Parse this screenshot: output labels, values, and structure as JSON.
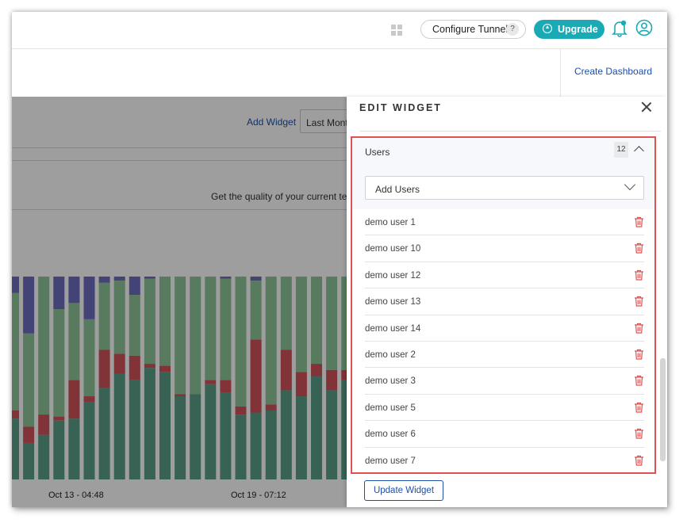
{
  "header": {
    "configure_tunnel_label": "Configure Tunnel",
    "configure_tunnel_help": "?",
    "upgrade_label": "Upgrade"
  },
  "subheader": {
    "create_dashboard_label": "Create Dashboard"
  },
  "dashboard": {
    "add_widget_label": "Add Widget",
    "period_select_value": "Last Month",
    "quality_text": "Get the quality of your current test",
    "x_ticks": [
      "Oct 13 - 04:48",
      "Oct 19 - 07:12"
    ]
  },
  "chart_data": {
    "type": "bar",
    "stacked": true,
    "series_colors": [
      "#5b9e86",
      "#d0535b",
      "#8fc59a",
      "#6c6cc0"
    ],
    "bars": [
      [
        0.3,
        0.04,
        0.58,
        0.08
      ],
      [
        0.18,
        0.08,
        0.46,
        0.28
      ],
      [
        0.22,
        0.1,
        0.7,
        0.0
      ],
      [
        0.29,
        0.02,
        0.53,
        0.16
      ],
      [
        0.3,
        0.19,
        0.38,
        0.13
      ],
      [
        0.38,
        0.03,
        0.38,
        0.21
      ],
      [
        0.45,
        0.19,
        0.33,
        0.03
      ],
      [
        0.52,
        0.1,
        0.36,
        0.02
      ],
      [
        0.49,
        0.12,
        0.3,
        0.09
      ],
      [
        0.55,
        0.02,
        0.42,
        0.01
      ],
      [
        0.53,
        0.03,
        0.44,
        0.0
      ],
      [
        0.41,
        0.01,
        0.58,
        0.0
      ],
      [
        0.42,
        0.0,
        0.58,
        0.0
      ],
      [
        0.47,
        0.02,
        0.51,
        0.0
      ],
      [
        0.43,
        0.06,
        0.5,
        0.01
      ],
      [
        0.32,
        0.04,
        0.64,
        0.0
      ],
      [
        0.33,
        0.36,
        0.29,
        0.02
      ],
      [
        0.34,
        0.03,
        0.63,
        0.0
      ],
      [
        0.44,
        0.2,
        0.36,
        0.0
      ],
      [
        0.41,
        0.12,
        0.47,
        0.0
      ],
      [
        0.51,
        0.06,
        0.43,
        0.0
      ],
      [
        0.44,
        0.1,
        0.46,
        0.0
      ],
      [
        0.49,
        0.05,
        0.46,
        0.0
      ],
      [
        0.39,
        0.0,
        0.61,
        0.0
      ]
    ]
  },
  "panel": {
    "title": "EDIT WIDGET",
    "section_title": "Users",
    "user_count": "12",
    "add_users_placeholder": "Add Users",
    "users": [
      "demo user 1",
      "demo user 10",
      "demo user 12",
      "demo user 13",
      "demo user 14",
      "demo user 2",
      "demo user 3",
      "demo user 5",
      "demo user 6",
      "demo user 7"
    ],
    "update_label": "Update Widget"
  }
}
